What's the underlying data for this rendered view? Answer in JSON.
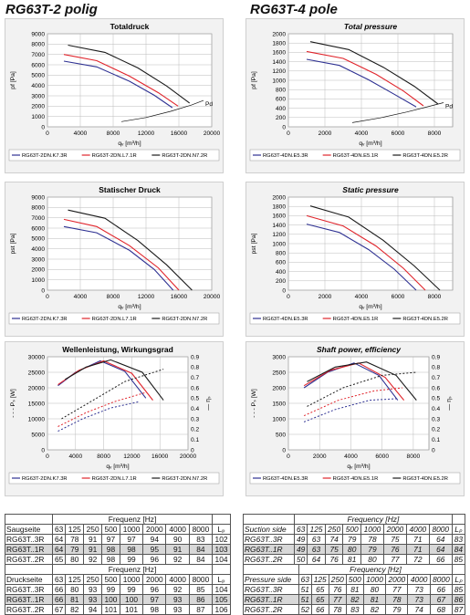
{
  "headers": {
    "left": "RG63T-2 polig",
    "right": "RG63T-4 pole"
  },
  "chart_data": [
    {
      "id": "c1",
      "type": "line",
      "title": "Totaldruck",
      "xlabel": "qᵥ [m³/h]",
      "ylabel": "pf [Pa]",
      "xlim": [
        0,
        20000
      ],
      "ylim": [
        0,
        9000
      ],
      "xticks": [
        0,
        4000,
        8000,
        12000,
        16000,
        20000
      ],
      "yticks": [
        0,
        1000,
        2000,
        3000,
        4000,
        5000,
        6000,
        7000,
        8000,
        9000
      ],
      "annotation": "Pd",
      "series": [
        {
          "name": "RG63T-2DN.K7.3R",
          "color": "#2e3192",
          "x": [
            2000,
            6000,
            10000,
            13000,
            15200
          ],
          "y": [
            6350,
            5800,
            4400,
            3050,
            1850
          ]
        },
        {
          "name": "RG63T-2DN.L7.1R",
          "color": "#e0242b",
          "x": [
            2000,
            6000,
            10000,
            13500,
            15900
          ],
          "y": [
            7000,
            6400,
            4900,
            3300,
            2000
          ]
        },
        {
          "name": "RG63T-2DN.N7.2R",
          "color": "#1a1a1a",
          "x": [
            2500,
            7000,
            11000,
            14500,
            17300
          ],
          "y": [
            7900,
            7200,
            5700,
            3950,
            2300
          ]
        }
      ],
      "pd_line": {
        "x": [
          9000,
          12000,
          15000,
          17500,
          19000
        ],
        "y": [
          500,
          900,
          1500,
          2100,
          2550
        ]
      }
    },
    {
      "id": "c2",
      "type": "line",
      "title": "Total pressure",
      "xlabel": "qᵥ [m³/h]",
      "ylabel": "pf [Pa]",
      "xlim": [
        0,
        9000
      ],
      "ylim": [
        0,
        2000
      ],
      "xticks": [
        0,
        2000,
        4000,
        6000,
        8000
      ],
      "yticks": [
        0,
        200,
        400,
        600,
        800,
        1000,
        1200,
        1400,
        1600,
        1800,
        2000
      ],
      "annotation": "Pd",
      "series": [
        {
          "name": "RG63T-4DN.E5.3R",
          "color": "#2e3192",
          "x": [
            1000,
            2800,
            4400,
            5800,
            7000
          ],
          "y": [
            1450,
            1320,
            1010,
            700,
            430
          ]
        },
        {
          "name": "RG63T-4DN.E5.1R",
          "color": "#e0242b",
          "x": [
            1000,
            3000,
            4800,
            6300,
            7400
          ],
          "y": [
            1620,
            1470,
            1130,
            770,
            450
          ]
        },
        {
          "name": "RG63T-4DN.E5.2R",
          "color": "#1a1a1a",
          "x": [
            1200,
            3300,
            5200,
            6900,
            8200
          ],
          "y": [
            1830,
            1660,
            1280,
            870,
            490
          ]
        }
      ],
      "pd_line": {
        "x": [
          3500,
          5000,
          6500,
          7700,
          8500
        ],
        "y": [
          90,
          190,
          320,
          440,
          520
        ]
      }
    },
    {
      "id": "c3",
      "type": "line",
      "title": "Statischer Druck",
      "xlabel": "qᵥ [m³/h]",
      "ylabel": "pst [Pa]",
      "xlim": [
        0,
        20000
      ],
      "ylim": [
        0,
        9000
      ],
      "xticks": [
        0,
        4000,
        8000,
        12000,
        16000,
        20000
      ],
      "yticks": [
        0,
        1000,
        2000,
        3000,
        4000,
        5000,
        6000,
        7000,
        8000,
        9000
      ],
      "series": [
        {
          "name": "RG63T-2DN.K7.3R",
          "color": "#2e3192",
          "x": [
            2000,
            6000,
            10000,
            13000,
            15300
          ],
          "y": [
            6150,
            5550,
            3850,
            2000,
            0
          ]
        },
        {
          "name": "RG63T-2DN.L7.1R",
          "color": "#e0242b",
          "x": [
            2000,
            6000,
            10000,
            13500,
            16000
          ],
          "y": [
            6850,
            6150,
            4300,
            2150,
            0
          ]
        },
        {
          "name": "RG63T-2DN.N7.2R",
          "color": "#1a1a1a",
          "x": [
            2500,
            7000,
            11000,
            14500,
            17600
          ],
          "y": [
            7750,
            6950,
            4800,
            2450,
            0
          ]
        }
      ]
    },
    {
      "id": "c4",
      "type": "line",
      "title": "Static pressure",
      "xlabel": "qᵥ [m³/h]",
      "ylabel": "pst [Pa]",
      "xlim": [
        0,
        9000
      ],
      "ylim": [
        0,
        2000
      ],
      "xticks": [
        0,
        2000,
        4000,
        6000,
        8000
      ],
      "yticks": [
        0,
        200,
        400,
        600,
        800,
        1000,
        1200,
        1400,
        1600,
        1800,
        2000
      ],
      "series": [
        {
          "name": "RG63T-4DN.E5.3R",
          "color": "#2e3192",
          "x": [
            1000,
            2800,
            4400,
            5800,
            7000
          ],
          "y": [
            1420,
            1240,
            870,
            450,
            0
          ]
        },
        {
          "name": "RG63T-4DN.E5.1R",
          "color": "#e0242b",
          "x": [
            1000,
            3000,
            4800,
            6300,
            7500
          ],
          "y": [
            1600,
            1380,
            950,
            470,
            0
          ]
        },
        {
          "name": "RG63T-4DN.E5.2R",
          "color": "#1a1a1a",
          "x": [
            1200,
            3300,
            5200,
            6900,
            8300
          ],
          "y": [
            1810,
            1570,
            1070,
            520,
            0
          ]
        }
      ]
    },
    {
      "id": "c5",
      "type": "line",
      "title": "Wellenleistung, Wirkungsgrad",
      "xlabel": "qᵥ [m³/h]",
      "ylabel": "- - - Pₛ [W]",
      "y2label": "— ηₛ",
      "xlim": [
        0,
        20000
      ],
      "ylim": [
        0,
        30000
      ],
      "y2lim": [
        0,
        0.9
      ],
      "xticks": [
        0,
        4000,
        8000,
        12000,
        16000,
        20000
      ],
      "yticks": [
        0,
        5000,
        10000,
        15000,
        20000,
        25000,
        30000
      ],
      "y2ticks": [
        0,
        0.1,
        0.2,
        0.3,
        0.4,
        0.5,
        0.6,
        0.7,
        0.8,
        0.9
      ],
      "series": [
        {
          "name": "RG63T-2DN.K7.3R",
          "color": "#2e3192",
          "eff_x": [
            1500,
            4000,
            7500,
            11000,
            14000
          ],
          "eff": [
            0.62,
            0.75,
            0.86,
            0.76,
            0.5
          ],
          "power_x": [
            1500,
            5000,
            9000,
            13000
          ],
          "power": [
            6000,
            10000,
            13500,
            15500
          ]
        },
        {
          "name": "RG63T-2DN.L7.1R",
          "color": "#e0242b",
          "eff_x": [
            1500,
            4500,
            8000,
            12000,
            15000
          ],
          "eff": [
            0.63,
            0.77,
            0.86,
            0.74,
            0.48
          ],
          "power_x": [
            1500,
            5500,
            9500,
            14000
          ],
          "power": [
            7500,
            12000,
            15500,
            18500
          ]
        },
        {
          "name": "RG63T-2DN.N7.2R",
          "color": "#1a1a1a",
          "eff_x": [
            2500,
            5500,
            9000,
            13500,
            16500
          ],
          "eff": [
            0.68,
            0.8,
            0.87,
            0.75,
            0.48
          ],
          "power_x": [
            2000,
            6500,
            11000,
            16500
          ],
          "power": [
            10000,
            16000,
            22000,
            26000
          ]
        }
      ]
    },
    {
      "id": "c6",
      "type": "line",
      "title": "Shaft power, efficiency",
      "xlabel": "qᵥ [m³/h]",
      "ylabel": "- - - Pₛ [W]",
      "y2label": "— ηₛ",
      "xlim": [
        0,
        9000
      ],
      "ylim": [
        0,
        3000
      ],
      "y2lim": [
        0,
        0.9
      ],
      "xticks": [
        0,
        2000,
        4000,
        6000,
        8000
      ],
      "yticks": [
        0,
        500,
        1000,
        1500,
        2000,
        2500,
        3000
      ],
      "y2ticks": [
        0,
        0.1,
        0.2,
        0.3,
        0.4,
        0.5,
        0.6,
        0.7,
        0.8,
        0.9
      ],
      "series": [
        {
          "name": "RG63T-4DN.E5.3R",
          "color": "#2e3192",
          "eff_x": [
            1000,
            2500,
            4200,
            5800,
            7000
          ],
          "eff": [
            0.6,
            0.75,
            0.84,
            0.72,
            0.48
          ],
          "power_x": [
            1000,
            3000,
            5200,
            7000
          ],
          "power": [
            900,
            1300,
            1600,
            1650
          ]
        },
        {
          "name": "RG63T-4DN.E5.1R",
          "color": "#e0242b",
          "eff_x": [
            1000,
            2700,
            4500,
            6200,
            7400
          ],
          "eff": [
            0.62,
            0.77,
            0.84,
            0.7,
            0.48
          ],
          "power_x": [
            1000,
            3200,
            5500,
            7300
          ],
          "power": [
            1100,
            1600,
            1900,
            2000
          ]
        },
        {
          "name": "RG63T-4DN.E5.2R",
          "color": "#1a1a1a",
          "eff_x": [
            1200,
            3000,
            5000,
            6900,
            8200
          ],
          "eff": [
            0.66,
            0.8,
            0.85,
            0.72,
            0.48
          ],
          "power_x": [
            1200,
            3500,
            6000,
            8200
          ],
          "power": [
            1400,
            2000,
            2400,
            2500
          ]
        }
      ]
    }
  ],
  "tables": [
    {
      "id": "t1",
      "freq_label": "Frequenz [Hz]",
      "side": "Saugseite",
      "cols": [
        "63",
        "125",
        "250",
        "500",
        "1000",
        "2000",
        "4000",
        "8000",
        "Lₚ"
      ],
      "rows": [
        [
          "RG63T..3R",
          "64",
          "78",
          "91",
          "97",
          "97",
          "94",
          "90",
          "83",
          "102"
        ],
        [
          "RG63T..1R",
          "64",
          "79",
          "91",
          "98",
          "98",
          "95",
          "91",
          "84",
          "103"
        ],
        [
          "RG63T..2R",
          "65",
          "80",
          "92",
          "98",
          "99",
          "96",
          "92",
          "84",
          "104"
        ]
      ]
    },
    {
      "id": "t2",
      "freq_label": "Frequency [Hz]",
      "side": "Suction side",
      "cols": [
        "63",
        "125",
        "250",
        "500",
        "1000",
        "2000",
        "4000",
        "8000",
        "Lₚ"
      ],
      "rows": [
        [
          "RG63T..3R",
          "49",
          "63",
          "74",
          "79",
          "78",
          "75",
          "71",
          "64",
          "83"
        ],
        [
          "RG63T..1R",
          "49",
          "63",
          "75",
          "80",
          "79",
          "76",
          "71",
          "64",
          "84"
        ],
        [
          "RG63T..2R",
          "50",
          "64",
          "76",
          "81",
          "80",
          "77",
          "72",
          "66",
          "85"
        ]
      ]
    },
    {
      "id": "t3",
      "freq_label": "Frequenz [Hz]",
      "side": "Druckseite",
      "cols": [
        "63",
        "125",
        "250",
        "500",
        "1000",
        "2000",
        "4000",
        "8000",
        "Lₚ"
      ],
      "rows": [
        [
          "RG63T..3R",
          "66",
          "80",
          "93",
          "99",
          "99",
          "96",
          "92",
          "85",
          "104"
        ],
        [
          "RG63T..1R",
          "66",
          "81",
          "93",
          "100",
          "100",
          "97",
          "93",
          "86",
          "105"
        ],
        [
          "RG63T..2R",
          "67",
          "82",
          "94",
          "101",
          "101",
          "98",
          "93",
          "87",
          "106"
        ]
      ]
    },
    {
      "id": "t4",
      "freq_label": "Frequency [Hz]",
      "side": "Pressure side",
      "cols": [
        "63",
        "125",
        "250",
        "500",
        "1000",
        "2000",
        "4000",
        "8000",
        "Lₚ"
      ],
      "rows": [
        [
          "RG63T..3R",
          "51",
          "65",
          "76",
          "81",
          "80",
          "77",
          "73",
          "66",
          "85"
        ],
        [
          "RG63T..1R",
          "51",
          "65",
          "77",
          "82",
          "81",
          "78",
          "73",
          "67",
          "86"
        ],
        [
          "RG63T..2R",
          "52",
          "66",
          "78",
          "83",
          "82",
          "79",
          "74",
          "68",
          "87"
        ]
      ]
    }
  ]
}
